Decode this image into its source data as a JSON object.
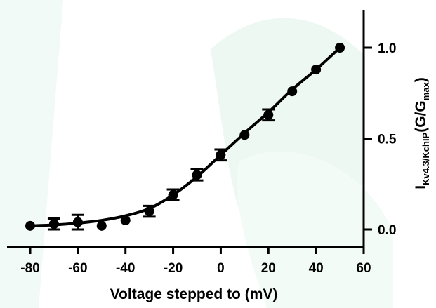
{
  "chart_data": {
    "type": "scatter",
    "title": "",
    "xlabel": "Voltage stepped to (mV)",
    "ylabel": {
      "main": "I",
      "subscript": "Kv4.3/KchIP",
      "paren_open": "(G/G",
      "paren_subscript": "max",
      "paren_close": ")"
    },
    "xlim": [
      -80,
      60
    ],
    "ylim": [
      0.0,
      1.0
    ],
    "xticks": [
      "-80",
      "-60",
      "-40",
      "-20",
      "0",
      "20",
      "40",
      "60"
    ],
    "yticks": [
      "0.0",
      "0.5",
      "1.0"
    ],
    "grid": false,
    "legend": "none",
    "y_axis_position": "right",
    "series": [
      {
        "x": [
          -80,
          -70,
          -60,
          -50,
          -40,
          -30,
          -20,
          -10,
          0,
          10,
          20,
          30,
          40,
          50
        ],
        "y": [
          0.02,
          0.03,
          0.04,
          0.02,
          0.05,
          0.1,
          0.19,
          0.3,
          0.41,
          0.52,
          0.63,
          0.76,
          0.88,
          1.0
        ],
        "error": [
          0.0,
          0.03,
          0.04,
          0.0,
          0.0,
          0.03,
          0.03,
          0.03,
          0.03,
          0.0,
          0.03,
          0.0,
          0.0,
          0.0
        ]
      }
    ],
    "fit_curve": {
      "x": [
        -80,
        -70,
        -60,
        -50,
        -40,
        -30,
        -20,
        -10,
        0,
        10,
        20,
        30,
        40,
        50
      ],
      "y": [
        0.02,
        0.025,
        0.035,
        0.05,
        0.075,
        0.115,
        0.19,
        0.29,
        0.41,
        0.53,
        0.645,
        0.77,
        0.88,
        1.0
      ]
    }
  }
}
